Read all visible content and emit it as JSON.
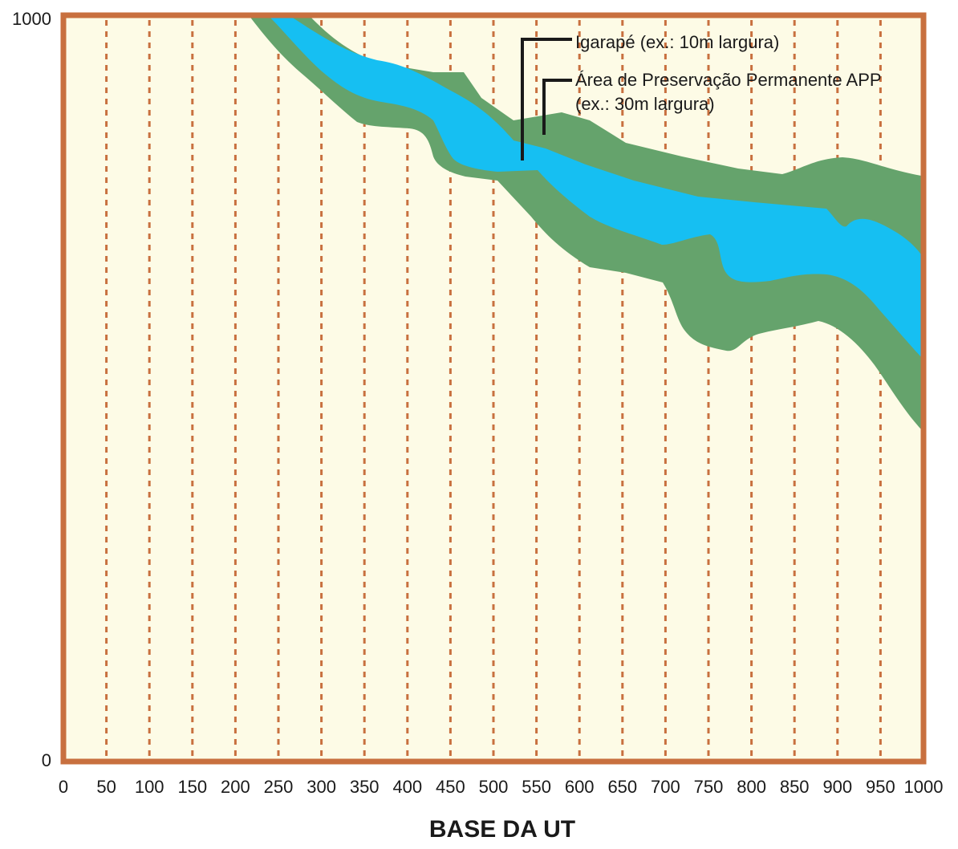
{
  "colors": {
    "background": "#fdfbe6",
    "border": "#c8703f",
    "grid_line": "#c8703f",
    "app_zone": "#65a36c",
    "stream": "#16bff2",
    "text": "#1a1a1a",
    "leader_line": "#1a1a1a"
  },
  "y_axis": {
    "top_label": "1000",
    "bottom_label": "0"
  },
  "x_axis": {
    "title": "BASE DA UT",
    "ticks": [
      "0",
      "50",
      "100",
      "150",
      "200",
      "250",
      "300",
      "350",
      "400",
      "450",
      "500",
      "550",
      "600",
      "650",
      "700",
      "750",
      "800",
      "850",
      "900",
      "950",
      "1000"
    ]
  },
  "legend": {
    "stream_label": "Igarapé (ex.: 10m largura)",
    "app_label_line1": "Área de Preservação Permanente APP",
    "app_label_line2": "(ex.: 30m largura)"
  }
}
